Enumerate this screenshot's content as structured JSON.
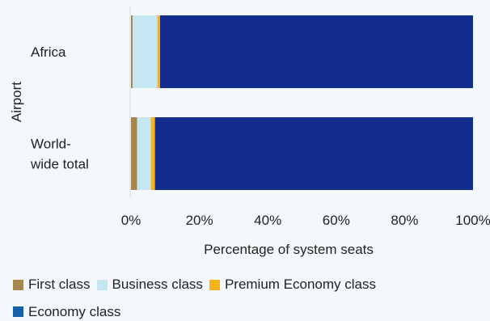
{
  "chart_data": {
    "type": "bar",
    "orientation": "horizontal",
    "stacked": true,
    "title": "",
    "xlabel": "Percentage of system seats",
    "ylabel": "Airport",
    "xlim": [
      0,
      100
    ],
    "x_ticks": [
      "0%",
      "20%",
      "40%",
      "60%",
      "80%",
      "100%"
    ],
    "categories": [
      [
        "Africa"
      ],
      [
        "World-",
        "wide total"
      ]
    ],
    "series": [
      {
        "name": "First class",
        "color": "#a6884f",
        "values": [
          0.5,
          1.8
        ]
      },
      {
        "name": "Business class",
        "color": "#c4e7f3",
        "values": [
          7.2,
          4.0
        ]
      },
      {
        "name": "Premium Economy class",
        "color": "#f7b318",
        "values": [
          0.8,
          1.2
        ]
      },
      {
        "name": "Economy class",
        "color": "#132d8f",
        "values": [
          91.5,
          93.0
        ]
      }
    ],
    "legend": {
      "placement": "bottom",
      "rows": [
        [
          "First class",
          "Business class",
          "Premium Economy class"
        ],
        [
          "Economy class"
        ]
      ],
      "swatch_colors": [
        "#a6884f",
        "#c4e7f3",
        "#f7b318",
        "#1560a8"
      ]
    },
    "grid": false
  }
}
